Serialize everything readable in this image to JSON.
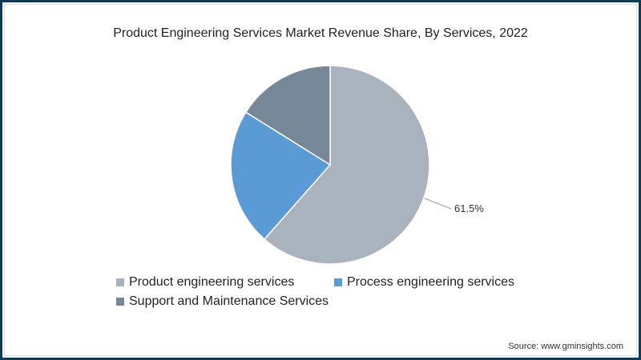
{
  "title": "Product Engineering Services Market Revenue Share, By Services, 2022",
  "source": "Source: www.gminsights.com",
  "label_product": "61.5%",
  "legend": [
    {
      "label": "Product engineering services",
      "color": "#a9b3bd"
    },
    {
      "label": "Process engineering services",
      "color": "#5b9bd5"
    },
    {
      "label": "Support and Maintenance Services",
      "color": "#768797"
    }
  ],
  "chart_data": {
    "type": "pie",
    "title": "Product Engineering Services Market Revenue Share, By Services, 2022",
    "categories": [
      "Product engineering services",
      "Process engineering services",
      "Support and Maintenance Services"
    ],
    "values": [
      61.5,
      22.4,
      16.1
    ],
    "colors": [
      "#a9b3bd",
      "#5b9bd5",
      "#768797"
    ],
    "data_labels": [
      "61.5%",
      null,
      null
    ],
    "legend_position": "bottom",
    "source": "Source: www.gminsights.com"
  }
}
